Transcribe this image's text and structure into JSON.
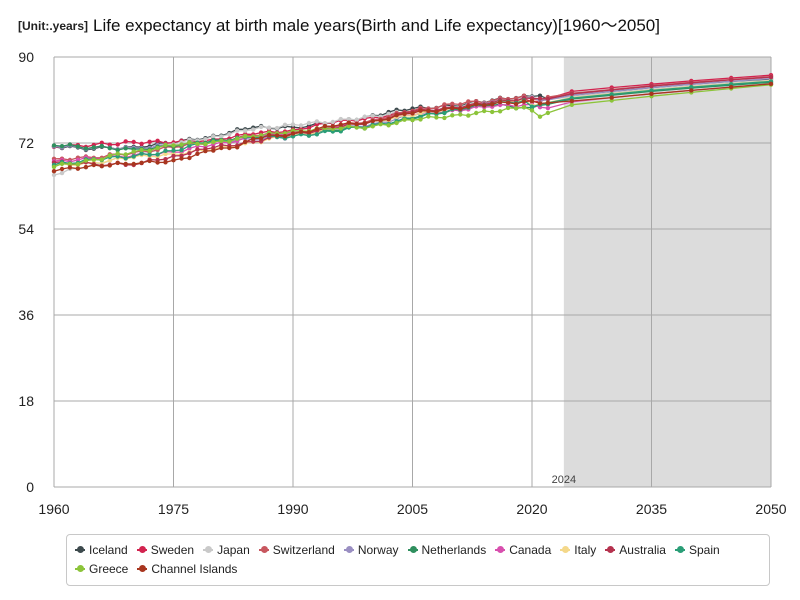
{
  "unit_label": "[Unit:.years]",
  "chart_data": {
    "type": "line",
    "title": "Life expectancy at birth male years(Birth and Life expectancy)[1960～2050]",
    "xlabel": "",
    "ylabel": "years",
    "xlim": [
      1960,
      2050
    ],
    "ylim": [
      0,
      90
    ],
    "x_ticks": [
      1960,
      1975,
      1990,
      2005,
      2020,
      2035,
      2050
    ],
    "y_ticks": [
      0,
      18,
      36,
      54,
      72,
      90
    ],
    "forecast_start": 2024,
    "forecast_label": "2024",
    "grid": true,
    "legend_position": "bottom",
    "series": [
      {
        "name": "Iceland",
        "color": "#3d4a4d",
        "points": [
          [
            1960,
            71.2
          ],
          [
            1965,
            70.8
          ],
          [
            1970,
            71.2
          ],
          [
            1975,
            72.0
          ],
          [
            1980,
            73.5
          ],
          [
            1985,
            75.2
          ],
          [
            1990,
            75.3
          ],
          [
            1995,
            76.2
          ],
          [
            2000,
            77.8
          ],
          [
            2005,
            79.2
          ],
          [
            2010,
            79.8
          ],
          [
            2015,
            80.9
          ],
          [
            2019,
            81.9
          ],
          [
            2021,
            81.9
          ],
          [
            2022,
            81.2
          ],
          [
            2025,
            82.0
          ],
          [
            2030,
            82.8
          ],
          [
            2035,
            83.6
          ],
          [
            2040,
            84.3
          ],
          [
            2045,
            84.9
          ],
          [
            2050,
            85.4
          ]
        ]
      },
      {
        "name": "Sweden",
        "color": "#d2234f",
        "points": [
          [
            1960,
            71.2
          ],
          [
            1965,
            71.6
          ],
          [
            1970,
            72.2
          ],
          [
            1975,
            72.1
          ],
          [
            1980,
            72.8
          ],
          [
            1985,
            73.8
          ],
          [
            1990,
            74.8
          ],
          [
            1995,
            76.2
          ],
          [
            2000,
            77.4
          ],
          [
            2005,
            78.4
          ],
          [
            2010,
            79.5
          ],
          [
            2015,
            80.3
          ],
          [
            2019,
            81.3
          ],
          [
            2020,
            80.6
          ],
          [
            2022,
            81.3
          ],
          [
            2025,
            82.8
          ],
          [
            2030,
            83.6
          ],
          [
            2035,
            84.3
          ],
          [
            2040,
            85.0
          ],
          [
            2045,
            85.6
          ],
          [
            2050,
            86.2
          ]
        ]
      },
      {
        "name": "Japan",
        "color": "#c9c9c9",
        "points": [
          [
            1960,
            65.3
          ],
          [
            1965,
            67.7
          ],
          [
            1970,
            69.3
          ],
          [
            1975,
            71.7
          ],
          [
            1980,
            73.4
          ],
          [
            1985,
            74.8
          ],
          [
            1990,
            75.9
          ],
          [
            1995,
            76.4
          ],
          [
            2000,
            77.7
          ],
          [
            2005,
            78.5
          ],
          [
            2010,
            79.6
          ],
          [
            2015,
            80.8
          ],
          [
            2020,
            81.6
          ],
          [
            2022,
            81.1
          ],
          [
            2025,
            81.7
          ],
          [
            2030,
            82.5
          ],
          [
            2035,
            83.2
          ],
          [
            2040,
            83.9
          ],
          [
            2045,
            84.5
          ],
          [
            2050,
            85.1
          ]
        ]
      },
      {
        "name": "Switzerland",
        "color": "#c8575f",
        "points": [
          [
            1960,
            68.7
          ],
          [
            1965,
            68.9
          ],
          [
            1970,
            70.0
          ],
          [
            1975,
            71.1
          ],
          [
            1980,
            72.3
          ],
          [
            1985,
            73.5
          ],
          [
            1990,
            74.0
          ],
          [
            1995,
            75.3
          ],
          [
            2000,
            76.9
          ],
          [
            2005,
            78.7
          ],
          [
            2010,
            80.2
          ],
          [
            2015,
            80.8
          ],
          [
            2019,
            81.9
          ],
          [
            2020,
            81.1
          ],
          [
            2022,
            81.6
          ],
          [
            2025,
            82.4
          ],
          [
            2030,
            83.2
          ],
          [
            2035,
            84.0
          ],
          [
            2040,
            84.7
          ],
          [
            2045,
            85.3
          ],
          [
            2050,
            85.9
          ]
        ]
      },
      {
        "name": "Norway",
        "color": "#9a8fc2",
        "points": [
          [
            1960,
            71.3
          ],
          [
            1965,
            71.0
          ],
          [
            1970,
            71.0
          ],
          [
            1975,
            71.5
          ],
          [
            1980,
            72.3
          ],
          [
            1985,
            72.7
          ],
          [
            1990,
            73.4
          ],
          [
            1995,
            74.8
          ],
          [
            2000,
            76.0
          ],
          [
            2005,
            77.7
          ],
          [
            2010,
            78.9
          ],
          [
            2015,
            80.5
          ],
          [
            2020,
            81.5
          ],
          [
            2022,
            81.0
          ],
          [
            2025,
            82.0
          ],
          [
            2030,
            82.8
          ],
          [
            2035,
            83.6
          ],
          [
            2040,
            84.3
          ],
          [
            2045,
            84.9
          ],
          [
            2050,
            85.5
          ]
        ]
      },
      {
        "name": "Netherlands",
        "color": "#2f8f5e",
        "points": [
          [
            1960,
            71.5
          ],
          [
            1965,
            71.1
          ],
          [
            1970,
            70.7
          ],
          [
            1975,
            71.3
          ],
          [
            1980,
            72.6
          ],
          [
            1985,
            73.1
          ],
          [
            1990,
            73.8
          ],
          [
            1995,
            74.6
          ],
          [
            2000,
            75.6
          ],
          [
            2005,
            77.2
          ],
          [
            2010,
            78.9
          ],
          [
            2015,
            79.9
          ],
          [
            2020,
            79.4
          ],
          [
            2022,
            80.1
          ],
          [
            2025,
            81.2
          ],
          [
            2030,
            82.0
          ],
          [
            2035,
            82.8
          ],
          [
            2040,
            83.5
          ],
          [
            2045,
            84.1
          ],
          [
            2050,
            84.7
          ]
        ]
      },
      {
        "name": "Canada",
        "color": "#d84fae",
        "points": [
          [
            1960,
            68.2
          ],
          [
            1965,
            68.7
          ],
          [
            1970,
            69.4
          ],
          [
            1975,
            70.1
          ],
          [
            1980,
            71.7
          ],
          [
            1985,
            73.1
          ],
          [
            1990,
            74.4
          ],
          [
            1995,
            75.1
          ],
          [
            2000,
            76.7
          ],
          [
            2005,
            77.8
          ],
          [
            2010,
            78.9
          ],
          [
            2015,
            79.6
          ],
          [
            2019,
            80.0
          ],
          [
            2021,
            79.5
          ],
          [
            2022,
            79.3
          ],
          [
            2025,
            80.6
          ],
          [
            2030,
            81.5
          ],
          [
            2035,
            82.3
          ],
          [
            2040,
            83.0
          ],
          [
            2045,
            83.7
          ],
          [
            2050,
            84.3
          ]
        ]
      },
      {
        "name": "Italy",
        "color": "#f4d88a",
        "points": [
          [
            1960,
            67.2
          ],
          [
            1965,
            67.9
          ],
          [
            1970,
            69.0
          ],
          [
            1975,
            69.7
          ],
          [
            1980,
            70.6
          ],
          [
            1985,
            72.2
          ],
          [
            1990,
            73.6
          ],
          [
            1995,
            74.9
          ],
          [
            2000,
            76.6
          ],
          [
            2005,
            77.7
          ],
          [
            2010,
            79.4
          ],
          [
            2015,
            80.3
          ],
          [
            2019,
            81.1
          ],
          [
            2020,
            79.8
          ],
          [
            2022,
            80.5
          ],
          [
            2025,
            81.5
          ],
          [
            2030,
            82.3
          ],
          [
            2035,
            83.1
          ],
          [
            2040,
            83.8
          ],
          [
            2045,
            84.4
          ],
          [
            2050,
            85.0
          ]
        ]
      },
      {
        "name": "Australia",
        "color": "#b5324e",
        "points": [
          [
            1960,
            67.9
          ],
          [
            1965,
            67.6
          ],
          [
            1970,
            67.4
          ],
          [
            1975,
            69.3
          ],
          [
            1980,
            71.0
          ],
          [
            1985,
            72.3
          ],
          [
            1990,
            73.9
          ],
          [
            1995,
            75.0
          ],
          [
            2000,
            76.6
          ],
          [
            2005,
            78.5
          ],
          [
            2010,
            79.5
          ],
          [
            2015,
            80.4
          ],
          [
            2019,
            81.4
          ],
          [
            2021,
            81.3
          ],
          [
            2022,
            81.2
          ],
          [
            2025,
            82.3
          ],
          [
            2030,
            83.1
          ],
          [
            2035,
            83.9
          ],
          [
            2040,
            84.6
          ],
          [
            2045,
            85.2
          ],
          [
            2050,
            85.8
          ]
        ]
      },
      {
        "name": "Spain",
        "color": "#2a9e77",
        "points": [
          [
            1960,
            67.4
          ],
          [
            1965,
            68.6
          ],
          [
            1970,
            69.2
          ],
          [
            1975,
            70.4
          ],
          [
            1980,
            72.5
          ],
          [
            1985,
            73.1
          ],
          [
            1990,
            73.4
          ],
          [
            1995,
            74.4
          ],
          [
            2000,
            75.8
          ],
          [
            2005,
            77.0
          ],
          [
            2010,
            79.1
          ],
          [
            2015,
            80.1
          ],
          [
            2019,
            80.9
          ],
          [
            2020,
            79.6
          ],
          [
            2022,
            80.4
          ],
          [
            2025,
            81.4
          ],
          [
            2030,
            82.2
          ],
          [
            2035,
            83.0
          ],
          [
            2040,
            83.7
          ],
          [
            2045,
            84.3
          ],
          [
            2050,
            84.9
          ]
        ]
      },
      {
        "name": "Greece",
        "color": "#8cc43a",
        "points": [
          [
            1960,
            67.0
          ],
          [
            1965,
            68.5
          ],
          [
            1970,
            70.2
          ],
          [
            1975,
            71.5
          ],
          [
            1980,
            72.2
          ],
          [
            1985,
            73.3
          ],
          [
            1990,
            74.6
          ],
          [
            1995,
            75.0
          ],
          [
            2000,
            75.5
          ],
          [
            2005,
            76.8
          ],
          [
            2010,
            77.8
          ],
          [
            2015,
            78.5
          ],
          [
            2019,
            79.5
          ],
          [
            2021,
            77.5
          ],
          [
            2022,
            78.3
          ],
          [
            2025,
            80.0
          ],
          [
            2030,
            80.9
          ],
          [
            2035,
            81.8
          ],
          [
            2040,
            82.6
          ],
          [
            2045,
            83.4
          ],
          [
            2050,
            84.2
          ]
        ]
      },
      {
        "name": "Channel Islands",
        "color": "#a8361f",
        "points": [
          [
            1960,
            66.1
          ],
          [
            1965,
            67.4
          ],
          [
            1970,
            67.6
          ],
          [
            1975,
            68.4
          ],
          [
            1980,
            70.4
          ],
          [
            1983,
            71.1
          ],
          [
            1985,
            72.9
          ],
          [
            1990,
            74.0
          ],
          [
            1995,
            75.5
          ],
          [
            2000,
            76.6
          ],
          [
            2005,
            78.2
          ],
          [
            2010,
            79.3
          ],
          [
            2015,
            80.1
          ],
          [
            2020,
            80.8
          ],
          [
            2022,
            80.4
          ],
          [
            2025,
            80.8
          ],
          [
            2030,
            81.5
          ],
          [
            2035,
            82.3
          ],
          [
            2040,
            83.0
          ],
          [
            2045,
            83.7
          ],
          [
            2050,
            84.4
          ]
        ]
      }
    ]
  }
}
